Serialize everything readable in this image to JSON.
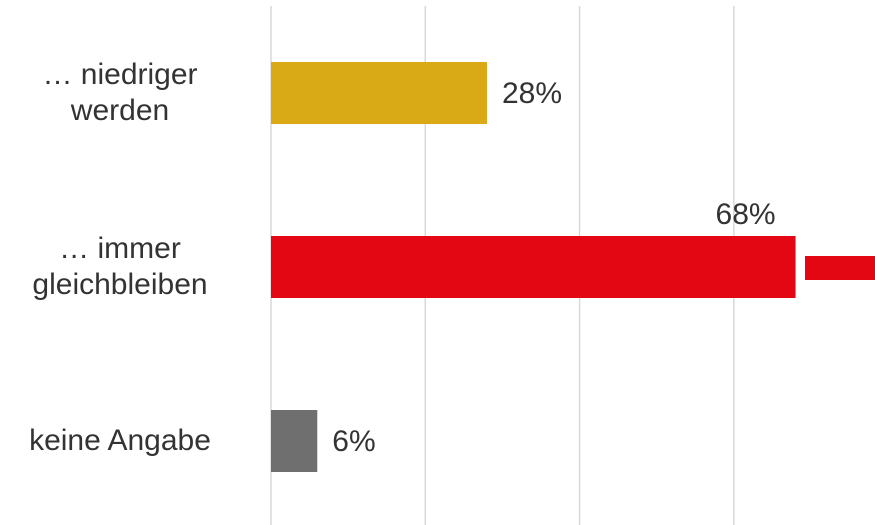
{
  "chart_data": {
    "type": "bar",
    "orientation": "horizontal",
    "categories": [
      "… niedriger\nwerden",
      "… immer\ngleichbleiben",
      "keine Angabe"
    ],
    "values": [
      28,
      68,
      6
    ],
    "value_labels": [
      "28%",
      "68%",
      "6%"
    ],
    "colors": [
      "#daa916",
      "#e30613",
      "#6f6f70"
    ],
    "xlim": [
      0,
      78.3
    ],
    "xticks": [
      0,
      20,
      40,
      60
    ],
    "grid": true
  }
}
